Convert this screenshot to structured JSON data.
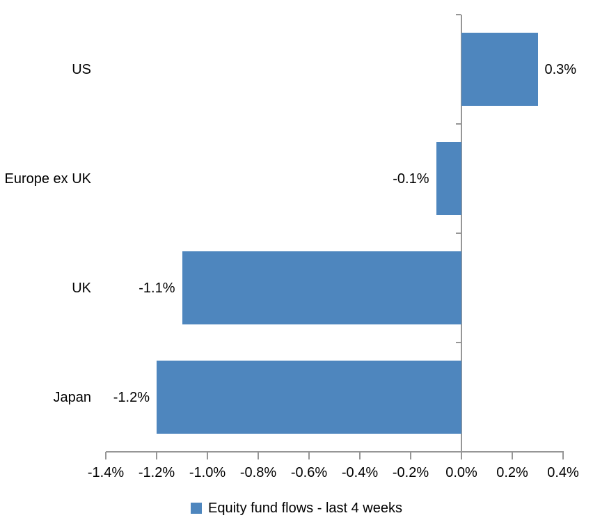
{
  "chart_data": {
    "type": "bar",
    "orientation": "horizontal",
    "title": "",
    "xlabel": "",
    "ylabel": "",
    "categories": [
      "US",
      "Europe ex UK",
      "UK",
      "Japan"
    ],
    "values": [
      0.3,
      -0.1,
      -1.1,
      -1.2
    ],
    "data_labels": [
      "0.3%",
      "-0.1%",
      "-1.1%",
      "-1.2%"
    ],
    "series": [
      {
        "name": "Equity fund flows - last 4 weeks",
        "values": [
          0.3,
          -0.1,
          -1.1,
          -1.2
        ]
      }
    ],
    "xlim": [
      -1.4,
      0.4
    ],
    "x_ticks": [
      -1.4,
      -1.2,
      -1.0,
      -0.8,
      -0.6,
      -0.4,
      -0.2,
      0.0,
      0.2,
      0.4
    ],
    "x_tick_labels": [
      "-1.4%",
      "-1.2%",
      "-1.0%",
      "-0.8%",
      "-0.6%",
      "-0.4%",
      "-0.2%",
      "0.0%",
      "0.2%",
      "0.4%"
    ],
    "grid": false,
    "legend_position": "bottom",
    "bar_color": "#4E86BE",
    "axis_color": "#969696",
    "text_color": "#000000"
  },
  "legend": {
    "label": "Equity fund flows - last 4 weeks",
    "swatch_color": "#4E86BE"
  }
}
